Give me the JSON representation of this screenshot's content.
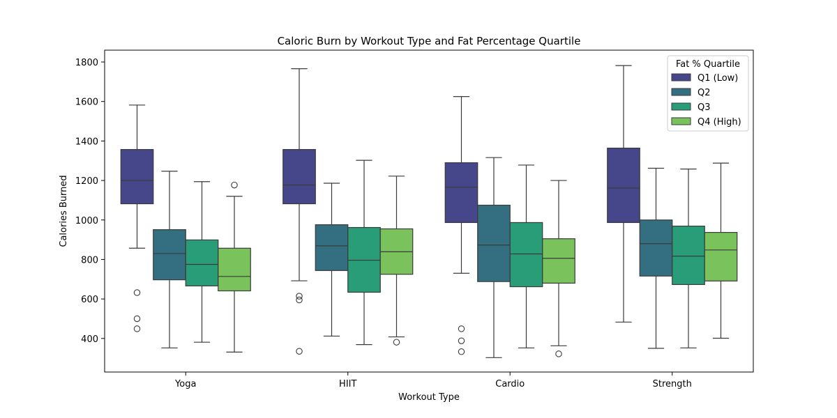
{
  "chart_data": {
    "type": "box",
    "title": "Caloric Burn by Workout Type and Fat Percentage Quartile",
    "xlabel": "Workout Type",
    "ylabel": "Calories Burned",
    "categories": [
      "Yoga",
      "HIIT",
      "Cardio",
      "Strength"
    ],
    "ylim": [
      230,
      1860
    ],
    "yticks": [
      400,
      600,
      800,
      1000,
      1200,
      1400,
      1600,
      1800
    ],
    "legend": {
      "title": "Fat % Quartile",
      "position": "top-right"
    },
    "series": [
      {
        "name": "Q1 (Low)",
        "color": "#46468a",
        "boxes": [
          {
            "whisker_low": 857,
            "q1": 1082,
            "median": 1200,
            "q3": 1357,
            "whisker_high": 1582,
            "outliers": [
              632,
              500,
              449
            ]
          },
          {
            "whisker_low": 692,
            "q1": 1082,
            "median": 1177,
            "q3": 1357,
            "whisker_high": 1766,
            "outliers": [
              614,
              595,
              335
            ]
          },
          {
            "whisker_low": 730,
            "q1": 987,
            "median": 1166,
            "q3": 1290,
            "whisker_high": 1625,
            "outliers": [
              449,
              388,
              333
            ]
          },
          {
            "whisker_low": 483,
            "q1": 987,
            "median": 1162,
            "q3": 1364,
            "whisker_high": 1782,
            "outliers": []
          }
        ]
      },
      {
        "name": "Q2",
        "color": "#336f80",
        "boxes": [
          {
            "whisker_low": 352,
            "q1": 697,
            "median": 830,
            "q3": 951,
            "whisker_high": 1247,
            "outliers": []
          },
          {
            "whisker_low": 412,
            "q1": 744,
            "median": 869,
            "q3": 976,
            "whisker_high": 1186,
            "outliers": []
          },
          {
            "whisker_low": 303,
            "q1": 688,
            "median": 873,
            "q3": 1075,
            "whisker_high": 1316,
            "outliers": []
          },
          {
            "whisker_low": 350,
            "q1": 716,
            "median": 880,
            "q3": 1000,
            "whisker_high": 1262,
            "outliers": []
          }
        ]
      },
      {
        "name": "Q3",
        "color": "#299c78",
        "boxes": [
          {
            "whisker_low": 381,
            "q1": 666,
            "median": 775,
            "q3": 899,
            "whisker_high": 1194,
            "outliers": []
          },
          {
            "whisker_low": 369,
            "q1": 634,
            "median": 796,
            "q3": 962,
            "whisker_high": 1302,
            "outliers": []
          },
          {
            "whisker_low": 352,
            "q1": 662,
            "median": 828,
            "q3": 987,
            "whisker_high": 1278,
            "outliers": []
          },
          {
            "whisker_low": 352,
            "q1": 673,
            "median": 817,
            "q3": 969,
            "whisker_high": 1258,
            "outliers": []
          }
        ]
      },
      {
        "name": "Q4 (High)",
        "color": "#7ac35c",
        "boxes": [
          {
            "whisker_low": 331,
            "q1": 641,
            "median": 714,
            "q3": 857,
            "whisker_high": 1120,
            "outliers": [
              1177
            ]
          },
          {
            "whisker_low": 408,
            "q1": 725,
            "median": 839,
            "q3": 955,
            "whisker_high": 1222,
            "outliers": [
              381
            ]
          },
          {
            "whisker_low": 363,
            "q1": 680,
            "median": 806,
            "q3": 905,
            "whisker_high": 1200,
            "outliers": [
              322
            ]
          },
          {
            "whisker_low": 401,
            "q1": 691,
            "median": 848,
            "q3": 937,
            "whisker_high": 1288,
            "outliers": []
          }
        ]
      }
    ]
  }
}
